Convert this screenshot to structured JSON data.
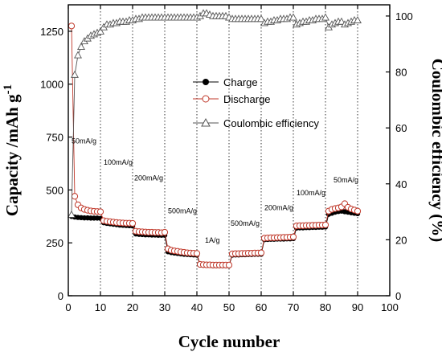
{
  "chart_data": {
    "type": "scatter",
    "xlabel": "Cycle number",
    "ylabel": "Capacity /mAh g",
    "ylabel_superscript": "-1",
    "y2label": "Coulombic efficiency  (%)",
    "xlim": [
      0,
      100
    ],
    "ylim": [
      0,
      1375
    ],
    "y2lim": [
      0,
      104
    ],
    "x_ticks": [
      0,
      10,
      20,
      30,
      40,
      50,
      60,
      70,
      80,
      90,
      100
    ],
    "y_ticks": [
      0,
      250,
      500,
      750,
      1000,
      1250
    ],
    "y2_ticks": [
      0,
      20,
      40,
      60,
      80,
      100
    ],
    "grid": "vertical dotted lines every 10 cycles",
    "legend_placement": "center",
    "legend": [
      "Charge",
      "Discharge",
      "Coulombic efficiency"
    ],
    "rate_labels": [
      {
        "text": "50mA/g",
        "x": 1,
        "y": 720
      },
      {
        "text": "100mA/g",
        "x": 11,
        "y": 620
      },
      {
        "text": "200mA/g",
        "x": 20.5,
        "y": 545
      },
      {
        "text": "500mA/g",
        "x": 31,
        "y": 390
      },
      {
        "text": "1A/g",
        "x": 42.5,
        "y": 250
      },
      {
        "text": "500mA/g",
        "x": 50.5,
        "y": 330
      },
      {
        "text": "200mA/g",
        "x": 61,
        "y": 405
      },
      {
        "text": "100mA/g",
        "x": 71,
        "y": 475
      },
      {
        "text": "50mA/g",
        "x": 82.5,
        "y": 535
      }
    ],
    "series": [
      {
        "name": "Charge",
        "axis": "left",
        "color": "#000000",
        "marker": "filled-circle",
        "x": [
          1,
          2,
          3,
          4,
          5,
          6,
          7,
          8,
          9,
          10,
          11,
          12,
          13,
          14,
          15,
          16,
          17,
          18,
          19,
          20,
          21,
          22,
          23,
          24,
          25,
          26,
          27,
          28,
          29,
          30,
          31,
          32,
          33,
          34,
          35,
          36,
          37,
          38,
          39,
          40,
          41,
          42,
          43,
          44,
          45,
          46,
          47,
          48,
          49,
          50,
          51,
          52,
          53,
          54,
          55,
          56,
          57,
          58,
          59,
          60,
          61,
          62,
          63,
          64,
          65,
          66,
          67,
          68,
          69,
          70,
          71,
          72,
          73,
          74,
          75,
          76,
          77,
          78,
          79,
          80,
          81,
          82,
          83,
          84,
          85,
          86,
          87,
          88,
          89,
          90
        ],
        "y": [
          375,
          372,
          370,
          369,
          368,
          368,
          367,
          367,
          367,
          366,
          345,
          342,
          340,
          338,
          336,
          334,
          333,
          332,
          331,
          330,
          292,
          290,
          289,
          288,
          288,
          287,
          287,
          286,
          286,
          286,
          208,
          204,
          202,
          200,
          198,
          196,
          195,
          194,
          193,
          192,
          145,
          144,
          143,
          143,
          142,
          142,
          142,
          142,
          142,
          142,
          192,
          193,
          193,
          194,
          194,
          195,
          195,
          196,
          196,
          196,
          265,
          266,
          267,
          267,
          268,
          268,
          268,
          269,
          269,
          270,
          320,
          321,
          321,
          322,
          322,
          323,
          323,
          324,
          324,
          325,
          385,
          390,
          395,
          398,
          400,
          397,
          395,
          392,
          390,
          388
        ]
      },
      {
        "name": "Discharge",
        "axis": "left",
        "color": "#c0392b",
        "marker": "open-circle",
        "x": [
          1,
          2,
          3,
          4,
          5,
          6,
          7,
          8,
          9,
          10,
          11,
          12,
          13,
          14,
          15,
          16,
          17,
          18,
          19,
          20,
          21,
          22,
          23,
          24,
          25,
          26,
          27,
          28,
          29,
          30,
          31,
          32,
          33,
          34,
          35,
          36,
          37,
          38,
          39,
          40,
          41,
          42,
          43,
          44,
          45,
          46,
          47,
          48,
          49,
          50,
          51,
          52,
          53,
          54,
          55,
          56,
          57,
          58,
          59,
          60,
          61,
          62,
          63,
          64,
          65,
          66,
          67,
          68,
          69,
          70,
          71,
          72,
          73,
          74,
          75,
          76,
          77,
          78,
          79,
          80,
          81,
          82,
          83,
          84,
          85,
          86,
          87,
          88,
          89,
          90
        ],
        "y": [
          1275,
          470,
          430,
          415,
          408,
          404,
          401,
          399,
          398,
          397,
          355,
          352,
          350,
          348,
          346,
          345,
          344,
          343,
          343,
          342,
          305,
          303,
          302,
          301,
          300,
          300,
          299,
          299,
          298,
          300,
          222,
          215,
          212,
          210,
          207,
          205,
          203,
          202,
          201,
          200,
          148,
          147,
          146,
          146,
          145,
          145,
          145,
          145,
          145,
          145,
          198,
          199,
          199,
          200,
          200,
          201,
          201,
          202,
          202,
          203,
          272,
          273,
          274,
          274,
          275,
          275,
          276,
          276,
          277,
          278,
          330,
          331,
          331,
          332,
          332,
          333,
          333,
          334,
          334,
          335,
          400,
          408,
          412,
          415,
          420,
          435,
          418,
          410,
          405,
          400
        ]
      },
      {
        "name": "Coulombic efficiency",
        "axis": "right",
        "color": "#555555",
        "marker": "open-triangle",
        "x": [
          1,
          2,
          3,
          4,
          5,
          6,
          7,
          8,
          9,
          10,
          11,
          12,
          13,
          14,
          15,
          16,
          17,
          18,
          19,
          20,
          21,
          22,
          23,
          24,
          25,
          26,
          27,
          28,
          29,
          30,
          31,
          32,
          33,
          34,
          35,
          36,
          37,
          38,
          39,
          40,
          41,
          42,
          43,
          44,
          45,
          46,
          47,
          48,
          49,
          50,
          51,
          52,
          53,
          54,
          55,
          56,
          57,
          58,
          59,
          60,
          61,
          62,
          63,
          64,
          65,
          66,
          67,
          68,
          69,
          70,
          71,
          72,
          73,
          74,
          75,
          76,
          77,
          78,
          79,
          80,
          81,
          82,
          83,
          84,
          85,
          86,
          87,
          88,
          89,
          90
        ],
        "y": [
          29,
          79,
          86,
          89,
          91,
          92,
          93,
          93.5,
          94,
          94.5,
          96,
          97,
          97,
          97.5,
          97.5,
          98,
          98,
          98,
          98.5,
          98.5,
          99,
          99,
          99.5,
          99.5,
          99.5,
          99.5,
          99.5,
          99.5,
          99.5,
          99.5,
          99.5,
          99.5,
          99.5,
          99.5,
          99.5,
          99.5,
          99.5,
          99.5,
          99.5,
          99.5,
          100,
          101,
          101,
          100.5,
          100,
          100,
          100,
          100,
          100,
          99.5,
          99,
          99,
          99,
          99,
          99,
          99,
          99,
          99,
          99,
          99,
          97.5,
          98,
          98,
          98.5,
          98.5,
          99,
          99,
          99,
          99.5,
          99.5,
          97,
          97.5,
          98,
          98,
          98.5,
          98.5,
          99,
          99,
          99,
          99.5,
          96,
          97,
          97.5,
          98,
          98,
          97,
          97.5,
          98,
          98.5,
          98.5
        ]
      }
    ]
  }
}
